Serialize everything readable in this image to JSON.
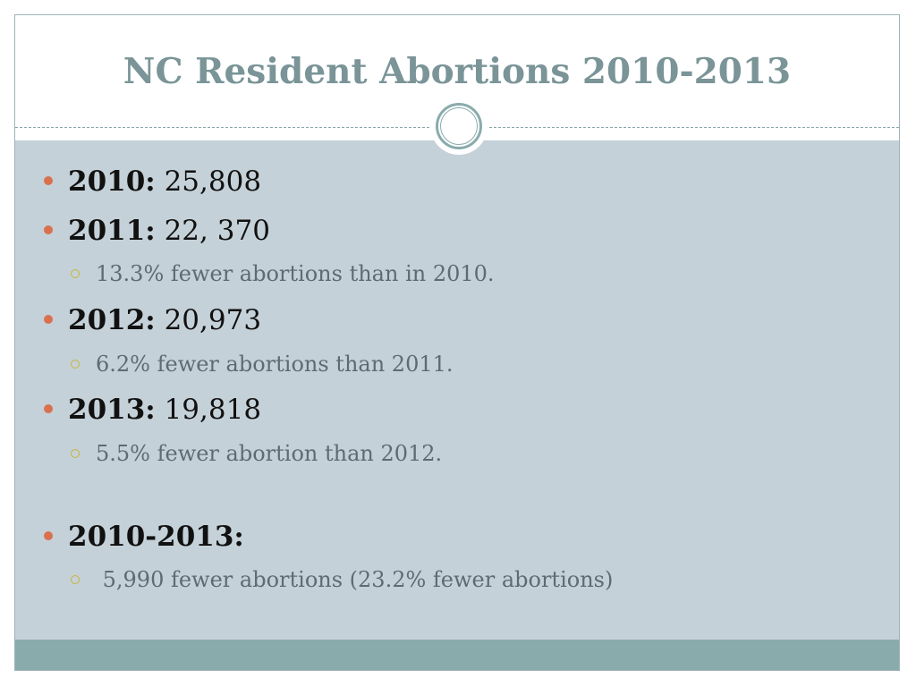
{
  "slide": {
    "title": "NC Resident Abortions 2010-2013",
    "bullets": [
      {
        "label": "2010:",
        "value": " 25,808"
      },
      {
        "label": "2011:",
        "value": " 22, 370"
      },
      {
        "sub": "13.3% fewer abortions than in 2010."
      },
      {
        "label": "2012:",
        "value": " 20,973"
      },
      {
        "sub": "6.2% fewer abortions than 2011."
      },
      {
        "label": "2013:",
        "value": " 19,818"
      },
      {
        "sub": "5.5% fewer abortion than 2012."
      },
      {
        "label": "2010-2013:",
        "value": ""
      },
      {
        "sub": " 5,990 fewer abortions (23.2% fewer abortions)"
      }
    ]
  },
  "colors": {
    "title": "#7a9497",
    "content_background": "#c5d1d8",
    "footer_bar": "#8aabac",
    "bullet_primary": "#d9714f",
    "bullet_secondary": "#c8b53a",
    "subtext": "#5d6b73"
  }
}
